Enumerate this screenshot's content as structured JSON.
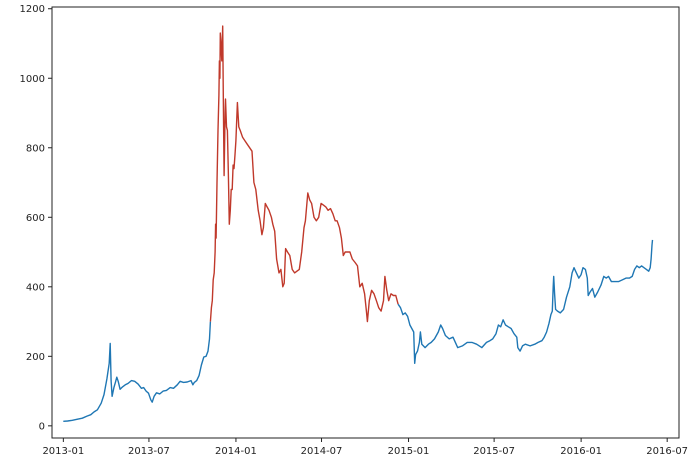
{
  "chart_data": {
    "type": "line",
    "title": "",
    "xlabel": "",
    "ylabel": "",
    "xlim": [
      "2012-12-08",
      "2016-07-26"
    ],
    "ylim": [
      -35,
      1205
    ],
    "x_ticks": [
      "2013-01",
      "2013-07",
      "2014-01",
      "2014-07",
      "2015-01",
      "2015-07",
      "2016-01",
      "2016-07"
    ],
    "y_ticks": [
      0,
      200,
      400,
      600,
      800,
      1000,
      1200
    ],
    "grid": false,
    "legend": "none",
    "series": [
      {
        "color": "#1f77b4",
        "points": [
          [
            "2013-01-01",
            13
          ],
          [
            "2013-01-10",
            14
          ],
          [
            "2013-01-20",
            16
          ],
          [
            "2013-01-31",
            19
          ],
          [
            "2013-02-10",
            22
          ],
          [
            "2013-02-20",
            28
          ],
          [
            "2013-02-28",
            32
          ],
          [
            "2013-03-07",
            40
          ],
          [
            "2013-03-14",
            46
          ],
          [
            "2013-03-22",
            65
          ],
          [
            "2013-03-28",
            90
          ],
          [
            "2013-04-03",
            135
          ],
          [
            "2013-04-08",
            180
          ],
          [
            "2013-04-10",
            237
          ],
          [
            "2013-04-12",
            130
          ],
          [
            "2013-04-14",
            85
          ],
          [
            "2013-04-18",
            110
          ],
          [
            "2013-04-21",
            125
          ],
          [
            "2013-04-24",
            140
          ],
          [
            "2013-04-27",
            128
          ],
          [
            "2013-05-01",
            105
          ],
          [
            "2013-05-06",
            112
          ],
          [
            "2013-05-12",
            118
          ],
          [
            "2013-05-18",
            122
          ],
          [
            "2013-05-25",
            130
          ],
          [
            "2013-06-01",
            128
          ],
          [
            "2013-06-08",
            120
          ],
          [
            "2013-06-15",
            108
          ],
          [
            "2013-06-20",
            110
          ],
          [
            "2013-06-25",
            100
          ],
          [
            "2013-06-30",
            94
          ],
          [
            "2013-07-05",
            75
          ],
          [
            "2013-07-08",
            68
          ],
          [
            "2013-07-12",
            85
          ],
          [
            "2013-07-17",
            95
          ],
          [
            "2013-07-24",
            92
          ],
          [
            "2013-07-31",
            100
          ],
          [
            "2013-08-07",
            102
          ],
          [
            "2013-08-15",
            110
          ],
          [
            "2013-08-22",
            108
          ],
          [
            "2013-08-30",
            118
          ],
          [
            "2013-09-05",
            128
          ],
          [
            "2013-09-12",
            125
          ],
          [
            "2013-09-20",
            126
          ],
          [
            "2013-09-28",
            130
          ],
          [
            "2013-10-02",
            118
          ],
          [
            "2013-10-05",
            125
          ],
          [
            "2013-10-10",
            130
          ],
          [
            "2013-10-15",
            145
          ],
          [
            "2013-10-20",
            175
          ],
          [
            "2013-10-25",
            198
          ],
          [
            "2013-10-30",
            200
          ],
          [
            "2013-11-03",
            215
          ],
          [
            "2013-11-06",
            250
          ],
          [
            "2013-11-08",
            300
          ]
        ]
      },
      {
        "color": "#c0392b",
        "points": [
          [
            "2013-11-08",
            300
          ],
          [
            "2013-11-10",
            340
          ],
          [
            "2013-11-12",
            360
          ],
          [
            "2013-11-14",
            420
          ],
          [
            "2013-11-16",
            440
          ],
          [
            "2013-11-18",
            500
          ],
          [
            "2013-11-19",
            580
          ],
          [
            "2013-11-20",
            540
          ],
          [
            "2013-11-22",
            700
          ],
          [
            "2013-11-24",
            850
          ],
          [
            "2013-11-26",
            950
          ],
          [
            "2013-11-27",
            1050
          ],
          [
            "2013-11-28",
            1000
          ],
          [
            "2013-11-29",
            1130
          ],
          [
            "2013-11-30",
            1110
          ],
          [
            "2013-12-02",
            1050
          ],
          [
            "2013-12-04",
            1150
          ],
          [
            "2013-12-05",
            980
          ],
          [
            "2013-12-06",
            860
          ],
          [
            "2013-12-07",
            720
          ],
          [
            "2013-12-09",
            900
          ],
          [
            "2013-12-10",
            940
          ],
          [
            "2013-12-12",
            860
          ],
          [
            "2013-12-14",
            850
          ],
          [
            "2013-12-16",
            720
          ],
          [
            "2013-12-18",
            580
          ],
          [
            "2013-12-20",
            620
          ],
          [
            "2013-12-22",
            680
          ],
          [
            "2013-12-24",
            680
          ],
          [
            "2013-12-26",
            750
          ],
          [
            "2013-12-28",
            740
          ],
          [
            "2013-12-30",
            780
          ],
          [
            "2014-01-01",
            820
          ],
          [
            "2014-01-04",
            930
          ],
          [
            "2014-01-07",
            860
          ],
          [
            "2014-01-10",
            850
          ],
          [
            "2014-01-15",
            830
          ],
          [
            "2014-01-20",
            820
          ],
          [
            "2014-01-25",
            810
          ],
          [
            "2014-01-30",
            800
          ],
          [
            "2014-02-04",
            790
          ],
          [
            "2014-02-08",
            700
          ],
          [
            "2014-02-12",
            680
          ],
          [
            "2014-02-17",
            620
          ],
          [
            "2014-02-21",
            590
          ],
          [
            "2014-02-25",
            550
          ],
          [
            "2014-02-28",
            570
          ],
          [
            "2014-03-04",
            640
          ],
          [
            "2014-03-08",
            630
          ],
          [
            "2014-03-12",
            620
          ],
          [
            "2014-03-17",
            600
          ],
          [
            "2014-03-20",
            580
          ],
          [
            "2014-03-24",
            560
          ],
          [
            "2014-03-28",
            480
          ],
          [
            "2014-04-02",
            440
          ],
          [
            "2014-04-06",
            450
          ],
          [
            "2014-04-10",
            400
          ],
          [
            "2014-04-13",
            410
          ],
          [
            "2014-04-16",
            510
          ],
          [
            "2014-04-20",
            500
          ],
          [
            "2014-04-25",
            490
          ],
          [
            "2014-04-30",
            450
          ],
          [
            "2014-05-05",
            440
          ],
          [
            "2014-05-10",
            445
          ],
          [
            "2014-05-15",
            450
          ],
          [
            "2014-05-20",
            500
          ],
          [
            "2014-05-25",
            570
          ],
          [
            "2014-05-28",
            590
          ],
          [
            "2014-06-02",
            670
          ],
          [
            "2014-06-06",
            650
          ],
          [
            "2014-06-10",
            640
          ],
          [
            "2014-06-15",
            600
          ],
          [
            "2014-06-20",
            590
          ],
          [
            "2014-06-25",
            600
          ],
          [
            "2014-06-30",
            640
          ],
          [
            "2014-07-05",
            635
          ],
          [
            "2014-07-10",
            630
          ],
          [
            "2014-07-15",
            620
          ],
          [
            "2014-07-20",
            625
          ],
          [
            "2014-07-25",
            610
          ],
          [
            "2014-07-30",
            590
          ],
          [
            "2014-08-03",
            590
          ],
          [
            "2014-08-08",
            570
          ],
          [
            "2014-08-12",
            540
          ],
          [
            "2014-08-16",
            490
          ],
          [
            "2014-08-20",
            500
          ],
          [
            "2014-08-25",
            500
          ],
          [
            "2014-08-30",
            500
          ],
          [
            "2014-09-04",
            480
          ],
          [
            "2014-09-10",
            470
          ],
          [
            "2014-09-15",
            460
          ],
          [
            "2014-09-20",
            400
          ],
          [
            "2014-09-25",
            410
          ],
          [
            "2014-09-30",
            380
          ],
          [
            "2014-10-04",
            330
          ],
          [
            "2014-10-06",
            300
          ],
          [
            "2014-10-10",
            360
          ],
          [
            "2014-10-15",
            390
          ],
          [
            "2014-10-20",
            380
          ],
          [
            "2014-10-25",
            360
          ],
          [
            "2014-10-30",
            340
          ],
          [
            "2014-11-04",
            330
          ],
          [
            "2014-11-09",
            360
          ],
          [
            "2014-11-12",
            430
          ],
          [
            "2014-11-16",
            390
          ],
          [
            "2014-11-20",
            360
          ],
          [
            "2014-11-25",
            380
          ],
          [
            "2014-11-30",
            375
          ],
          [
            "2014-12-05",
            375
          ],
          [
            "2014-12-10",
            350
          ]
        ]
      },
      {
        "color": "#1f77b4",
        "points": [
          [
            "2014-12-10",
            350
          ],
          [
            "2014-12-15",
            340
          ],
          [
            "2014-12-20",
            320
          ],
          [
            "2014-12-25",
            325
          ],
          [
            "2014-12-30",
            315
          ],
          [
            "2015-01-04",
            290
          ],
          [
            "2015-01-08",
            280
          ],
          [
            "2015-01-12",
            270
          ],
          [
            "2015-01-14",
            180
          ],
          [
            "2015-01-16",
            205
          ],
          [
            "2015-01-20",
            215
          ],
          [
            "2015-01-24",
            240
          ],
          [
            "2015-01-26",
            270
          ],
          [
            "2015-01-29",
            235
          ],
          [
            "2015-02-05",
            225
          ],
          [
            "2015-02-12",
            235
          ],
          [
            "2015-02-18",
            240
          ],
          [
            "2015-02-25",
            250
          ],
          [
            "2015-03-05",
            270
          ],
          [
            "2015-03-10",
            290
          ],
          [
            "2015-03-14",
            280
          ],
          [
            "2015-03-20",
            260
          ],
          [
            "2015-03-28",
            250
          ],
          [
            "2015-04-05",
            255
          ],
          [
            "2015-04-15",
            225
          ],
          [
            "2015-04-25",
            230
          ],
          [
            "2015-05-05",
            240
          ],
          [
            "2015-05-15",
            240
          ],
          [
            "2015-05-25",
            235
          ],
          [
            "2015-06-05",
            225
          ],
          [
            "2015-06-15",
            240
          ],
          [
            "2015-06-22",
            245
          ],
          [
            "2015-06-28",
            250
          ],
          [
            "2015-07-05",
            265
          ],
          [
            "2015-07-10",
            290
          ],
          [
            "2015-07-15",
            285
          ],
          [
            "2015-07-20",
            305
          ],
          [
            "2015-07-25",
            290
          ],
          [
            "2015-07-31",
            285
          ],
          [
            "2015-08-06",
            280
          ],
          [
            "2015-08-12",
            265
          ],
          [
            "2015-08-18",
            255
          ],
          [
            "2015-08-20",
            225
          ],
          [
            "2015-08-25",
            215
          ],
          [
            "2015-08-30",
            230
          ],
          [
            "2015-09-05",
            235
          ],
          [
            "2015-09-15",
            230
          ],
          [
            "2015-09-25",
            235
          ],
          [
            "2015-10-02",
            240
          ],
          [
            "2015-10-10",
            245
          ],
          [
            "2015-10-15",
            255
          ],
          [
            "2015-10-20",
            270
          ],
          [
            "2015-10-25",
            295
          ],
          [
            "2015-10-29",
            320
          ],
          [
            "2015-11-01",
            330
          ],
          [
            "2015-11-03",
            400
          ],
          [
            "2015-11-04",
            430
          ],
          [
            "2015-11-06",
            380
          ],
          [
            "2015-11-08",
            335
          ],
          [
            "2015-11-12",
            330
          ],
          [
            "2015-11-18",
            325
          ],
          [
            "2015-11-25",
            335
          ],
          [
            "2015-12-01",
            370
          ],
          [
            "2015-12-08",
            400
          ],
          [
            "2015-12-13",
            440
          ],
          [
            "2015-12-17",
            455
          ],
          [
            "2015-12-22",
            440
          ],
          [
            "2015-12-27",
            425
          ],
          [
            "2016-01-01",
            435
          ],
          [
            "2016-01-05",
            455
          ],
          [
            "2016-01-10",
            450
          ],
          [
            "2016-01-14",
            425
          ],
          [
            "2016-01-16",
            375
          ],
          [
            "2016-01-20",
            385
          ],
          [
            "2016-01-25",
            395
          ],
          [
            "2016-01-30",
            370
          ],
          [
            "2016-02-05",
            385
          ],
          [
            "2016-02-12",
            405
          ],
          [
            "2016-02-18",
            430
          ],
          [
            "2016-02-23",
            425
          ],
          [
            "2016-02-28",
            430
          ],
          [
            "2016-03-05",
            415
          ],
          [
            "2016-03-12",
            415
          ],
          [
            "2016-03-20",
            415
          ],
          [
            "2016-03-28",
            420
          ],
          [
            "2016-04-05",
            425
          ],
          [
            "2016-04-12",
            425
          ],
          [
            "2016-04-18",
            430
          ],
          [
            "2016-04-23",
            450
          ],
          [
            "2016-04-28",
            460
          ],
          [
            "2016-05-03",
            455
          ],
          [
            "2016-05-08",
            460
          ],
          [
            "2016-05-13",
            455
          ],
          [
            "2016-05-18",
            450
          ],
          [
            "2016-05-23",
            445
          ],
          [
            "2016-05-26",
            455
          ],
          [
            "2016-05-28",
            480
          ],
          [
            "2016-05-30",
            520
          ],
          [
            "2016-05-31",
            535
          ]
        ]
      }
    ]
  }
}
